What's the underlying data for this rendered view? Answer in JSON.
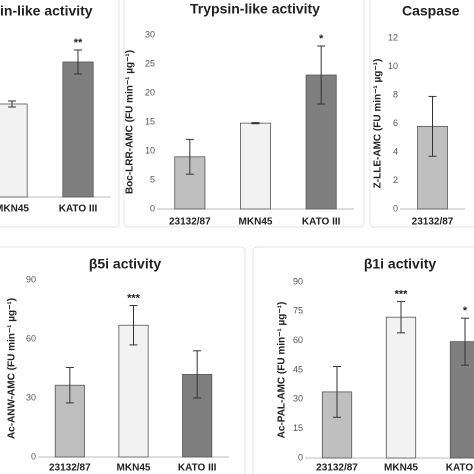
{
  "chart_data": [
    {
      "type": "bar",
      "title": "in-like activity",
      "categories": [
        "MKN45",
        "KATO III"
      ],
      "values": [
        93,
        135
      ],
      "errors": [
        3,
        12
      ],
      "colors": [
        "#f2f2f2",
        "#7f7f7f"
      ],
      "annotations": [
        null,
        "**"
      ],
      "ylim": [
        0,
        180
      ]
    },
    {
      "type": "bar",
      "title": "Trypsin-like activity",
      "ylabel": "Boc-LRR-AMC (FU min⁻¹ µg⁻¹)",
      "categories": [
        "23132/87",
        "MKN45",
        "KATO III"
      ],
      "values": [
        9,
        14.8,
        23.1
      ],
      "errors": [
        3,
        0.1,
        5
      ],
      "colors": [
        "#bfbfbf",
        "#f2f2f2",
        "#7f7f7f"
      ],
      "annotations": [
        null,
        null,
        "*"
      ],
      "ylim": [
        0,
        30
      ],
      "yticks": [
        0,
        5,
        10,
        15,
        20,
        25,
        30
      ]
    },
    {
      "type": "bar",
      "title": "Caspase",
      "ylabel": "Z-LLE-AMC (FU min⁻¹ µg⁻¹)",
      "categories": [
        "23132/87"
      ],
      "values": [
        5.8
      ],
      "errors": [
        2.1
      ],
      "colors": [
        "#bfbfbf"
      ],
      "ylim": [
        0,
        12
      ],
      "yticks": [
        0,
        2,
        4,
        6,
        8,
        10,
        12
      ]
    },
    {
      "type": "bar",
      "title": "β5i activity",
      "ylabel": "Ac-ANW-AMC (FU min⁻¹ µg⁻¹)",
      "categories": [
        "23132/87",
        "MKN45",
        "KATO III"
      ],
      "values": [
        36.5,
        67,
        42
      ],
      "errors": [
        9,
        10,
        12
      ],
      "colors": [
        "#bfbfbf",
        "#f2f2f2",
        "#7f7f7f"
      ],
      "annotations": [
        null,
        "***",
        null
      ],
      "ylim": [
        0,
        90
      ],
      "yticks": [
        0,
        30,
        60,
        90
      ]
    },
    {
      "type": "bar",
      "title": "β1i activity",
      "ylabel": "Ac-PAL-AMC (FU min⁻¹ µg⁻¹)",
      "categories": [
        "23132/87",
        "MKN45",
        "KATO III"
      ],
      "values": [
        33.8,
        72,
        59.5
      ],
      "errors": [
        13,
        8,
        12
      ],
      "colors": [
        "#bfbfbf",
        "#f2f2f2",
        "#7f7f7f"
      ],
      "annotations": [
        null,
        "***",
        "*"
      ],
      "ylim": [
        0,
        90
      ],
      "yticks": [
        0,
        15,
        30,
        45,
        60,
        75,
        90
      ]
    }
  ]
}
